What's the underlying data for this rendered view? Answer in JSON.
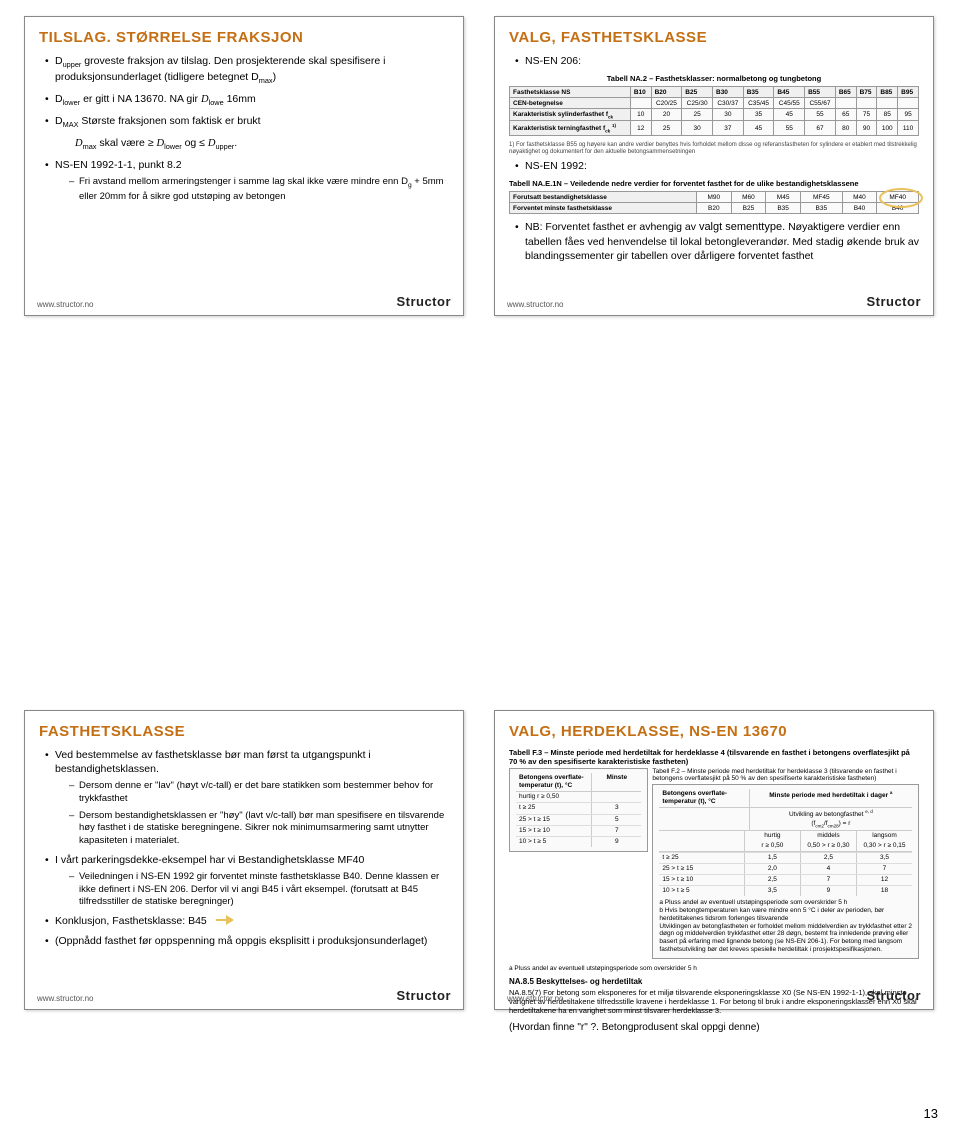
{
  "page_number": "13",
  "colors": {
    "title": "#c46f13",
    "brand": "#222222",
    "highlight_ring": "#eac05a"
  },
  "brand": "Structor",
  "url": "www.structor.no",
  "slide1": {
    "title": "TILSLAG. STØRRELSE FRAKSJON",
    "b1_pre": "D",
    "b1_sub": "upper",
    "b1_rest": " groveste fraksjon av tilslag. Den prosjekterende skal spesifisere i produksjonsunderlaget (tidligere betegnet D",
    "b1_sub2": "max",
    "b1_end": ")",
    "b2_pre": "D",
    "b2_sub": "lower",
    "b2_mid": " er gitt i NA 13670. NA gir ",
    "b2_i": "D",
    "b2_isub": "lowe",
    "b2_end": " 16mm",
    "b3_pre": "D",
    "b3_sub": "MAX",
    "b3_rest": " Største fraksjonen som faktisk er brukt",
    "expr_left_i": "D",
    "expr_left_sub": "max",
    "expr_mid1": " skal være ≥ ",
    "expr_mid_i": "D",
    "expr_mid_sub": "lower",
    "expr_mid2": " og ≤ ",
    "expr_right_i": "D",
    "expr_right_sub": "upper",
    "expr_end": ".",
    "b4": "NS-EN 1992-1-1, punkt 8.2",
    "b4s_pre": "Fri avstand mellom armeringstenger i samme lag skal ikke være mindre enn D",
    "b4s_sub": "g",
    "b4s_end": " + 5mm eller 20mm for å sikre god utstøping av betongen"
  },
  "slide2": {
    "title": "VALG, FASTHETSKLASSE",
    "b1": "NS-EN 206:",
    "tbl1_caption": "Tabell NA.2 – Fasthetsklasser: normalbetong og tungbetong",
    "tbl1_h": [
      "Fasthetsklasse NS",
      "B10",
      "B20",
      "B25",
      "B30",
      "B35",
      "B45",
      "B55",
      "B65",
      "B75",
      "B85",
      "B95"
    ],
    "tbl1_r1": [
      "CEN-betegnelse",
      "",
      "C20/25",
      "C25/30",
      "C30/37",
      "C35/45",
      "C45/55",
      "C55/67",
      "",
      "",
      "",
      ""
    ],
    "tbl1_r2_label": "Karakteristisk sylinderfasthet f",
    "tbl1_r2_sub": "ck",
    "tbl1_r2": [
      "10",
      "20",
      "25",
      "30",
      "35",
      "45",
      "55",
      "65",
      "75",
      "85",
      "95"
    ],
    "tbl1_r3_label": "Karakteristisk terningfasthet f",
    "tbl1_r3_sub": "ck",
    "tbl1_r3": [
      "12",
      "25",
      "30",
      "37",
      "45",
      "55",
      "67",
      "80",
      "90",
      "100",
      "110"
    ],
    "tbl1_foot": "1) For fasthetsklasse B55 og høyere kan andre verdier benyttes hvis forholdet mellom disse og referansfastheten for sylindere er etablert med tilstrekkelig nøyaktighet og dokumentert for den aktuelle betongsammensetningen",
    "b2": "NS-EN 1992:",
    "tbl2_caption": "Tabell NA.E.1N – Veiledende nedre verdier for forventet fasthet for de ulike bestandighetsklassene",
    "tbl2_h": [
      "Forutsatt bestandighetsklasse",
      "M90",
      "M60",
      "M45",
      "MF45",
      "M40",
      "MF40"
    ],
    "tbl2_r": [
      "Forventet minste fasthetsklasse",
      "B20",
      "B25",
      "B35",
      "B35",
      "B40",
      "B40"
    ],
    "b3_pre": "NB: Forventet fasthet er avhengig av ",
    "b3_hl": "valgt sementtype.",
    "b3_rest": " Nøyaktigere verdier enn tabellen fåes ved henvendelse til lokal betongleverandør. Med stadig økende bruk av blandingssementer gir tabellen over dårligere forventet fasthet"
  },
  "slide3": {
    "title": "FASTHETSKLASSE",
    "b1": "Ved bestemmelse av fasthetsklasse bør man først ta utgangspunkt i bestandighetsklassen.",
    "b1s1": "Dersom denne er \"lav\" (høyt v/c-tall) er det bare statikken som bestemmer behov for trykkfasthet",
    "b1s2": "Dersom bestandighetsklassen er \"høy\" (lavt v/c-tall) bør man spesifisere en tilsvarende høy fasthet i de statiske beregningene. Sikrer nok minimumsarmering samt utnytter kapasiteten i materialet.",
    "b2": "I vårt parkeringsdekke-eksempel har vi Bestandighetsklasse MF40",
    "b2s1": "Veiledningen i NS-EN 1992 gir forventet minste fasthetsklasse B40. Denne klassen er ikke definert i NS-EN 206. Derfor vil vi angi B45 i vårt eksempel. (forutsatt at B45 tilfredsstiller de statiske beregninger)",
    "b3": "Konklusjon, Fasthetsklasse: B45",
    "b4": "(Oppnådd fasthet før oppspenning må oppgis eksplisitt i produksjonsunderlaget)"
  },
  "slide4": {
    "title": "VALG, HERDEKLASSE, NS-EN 13670",
    "cap_f3": "Tabell F.3 – Minste periode med herdetiltak for herdeklasse 4 (tilsvarende en fasthet i betongens overflatesjikt på 70 % av den spesifiserte karakteristiske fastheten)",
    "cap_f2": "Tabell F.2 – Minste periode med herdetiltak for herdeklasse 3 (tilsvarende en fasthet i betongens overflatesjikt på 50 % av den spesifiserte karakteristiske fastheten)",
    "col_temp_label": "Betongens overflate-temperatur (t), °C",
    "col_period_label": "Minste periode med herdetiltak i dager",
    "col_dev_label": "Utvikling av betongfasthet",
    "col_dev_sub": "(f",
    "col_dev_sub2": "cm2",
    "col_dev_sub3": "/f",
    "col_dev_sub4": "cm28",
    "col_dev_sub5": ") = r",
    "f3_dev": [
      "hurtig r ≥ 0,50"
    ],
    "f2_dev_h": [
      "hurtig",
      "middels",
      "langsom"
    ],
    "f2_dev_r": [
      "r ≥ 0,50",
      "0,50 > r ≥ 0,30",
      "0,30 > r ≥ 0,15"
    ],
    "f3_rows": [
      [
        "t ≥ 25",
        "3"
      ],
      [
        "25 > t ≥ 15",
        "5"
      ],
      [
        "15 > t ≥ 10",
        "7"
      ],
      [
        "10 > t ≥ 5",
        "9"
      ]
    ],
    "f2_rows": [
      [
        "t ≥ 25",
        "1,5",
        "2,5",
        "3,5"
      ],
      [
        "25 > t ≥ 15",
        "2,0",
        "4",
        "7"
      ],
      [
        "15 > t ≥ 10",
        "2,5",
        "7",
        "12"
      ],
      [
        "10 > t ≥ 5",
        "3,5",
        "9",
        "18"
      ]
    ],
    "foot_a": "a  Pluss andel av eventuell utstøpingsperiode som overskrider 5 h",
    "foot_b": "b  Hvis betongtemperaturen kan være mindre enn 5 °C i deler av perioden, bør herdetiltakenes tidsrom forlenges tilsvarende",
    "foot_norm": "Utviklingen av betongfastheten er forholdet mellom middelverdien av trykkfasthet etter 2 døgn og middelverdien trykkfasthet etter 28 døgn, bestemt fra innledende prøving eller basert på erfaring med lignende betong (se NS-EN 206-1). For betong med langsom fasthetsutvikling bør det kreves spesielle herdetiltak i prosjektspesifikasjonen.",
    "sec_title": "NA.8.5 Beskyttelses- og herdetiltak",
    "sec_body": "NA.8.5(7) For betong som eksponeres for et miljø tilsvarende eksponeringsklasse X0 (Se NS-EN 1992-1-1), skal minste varighet av herdetiltakene tilfredsstille kravene i herdeklasse 1. For betong til bruk i andre eksponeringsklasser enn X0 skal herdetiltakene ha en varighet som minst tilsvarer herdeklasse 3.",
    "bottom": "(Hvordan finne \"r\" ?. Betongprodusent skal oppgi denne)"
  }
}
